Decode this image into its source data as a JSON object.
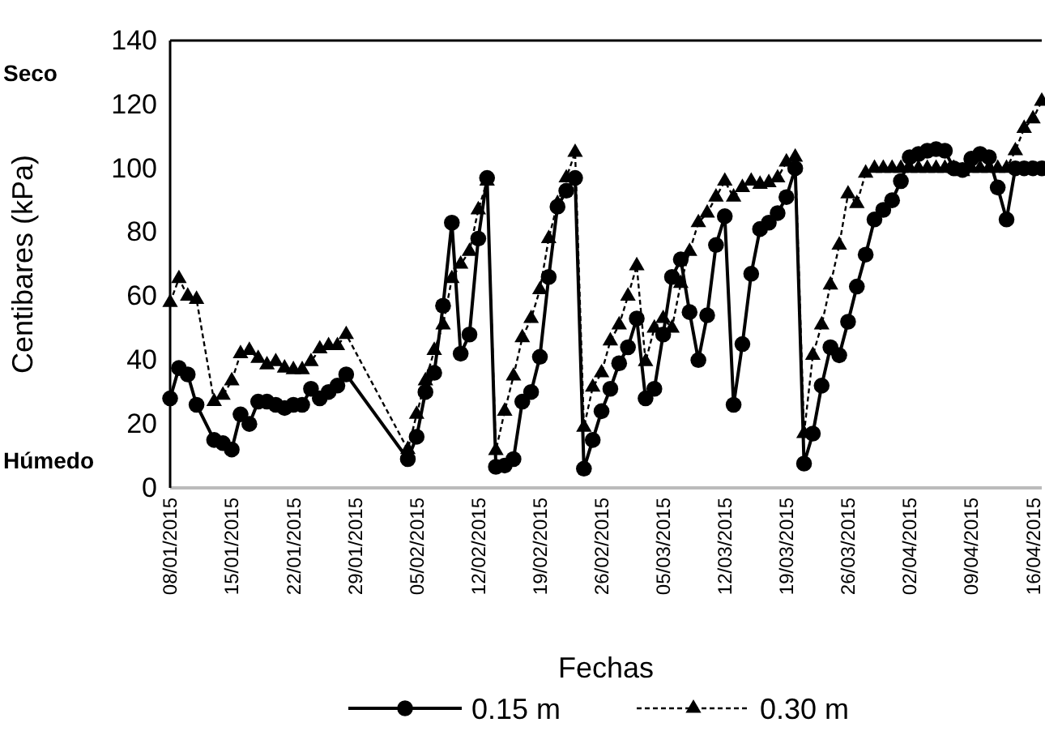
{
  "chart_data": {
    "type": "line",
    "xlabel": "Fechas",
    "ylabel": "Centibares (kPa)",
    "annotations": [
      "Seco",
      "Húmedo"
    ],
    "xlim": [
      "2015-01-08",
      "2015-04-17"
    ],
    "ylim": [
      0,
      140
    ],
    "yticks": [
      0,
      20,
      40,
      60,
      80,
      100,
      120,
      140
    ],
    "xticks": [
      {
        "value": "2015-01-08",
        "label": "08/01/2015"
      },
      {
        "value": "2015-01-15",
        "label": "15/01/2015"
      },
      {
        "value": "2015-01-22",
        "label": "22/01/2015"
      },
      {
        "value": "2015-01-29",
        "label": "29/01/2015"
      },
      {
        "value": "2015-02-05",
        "label": "05/02/2015"
      },
      {
        "value": "2015-02-12",
        "label": "12/02/2015"
      },
      {
        "value": "2015-02-19",
        "label": "19/02/2015"
      },
      {
        "value": "2015-02-26",
        "label": "26/02/2015"
      },
      {
        "value": "2015-03-05",
        "label": "05/03/2015"
      },
      {
        "value": "2015-03-12",
        "label": "12/03/2015"
      },
      {
        "value": "2015-03-19",
        "label": "19/03/2015"
      },
      {
        "value": "2015-03-26",
        "label": "26/03/2015"
      },
      {
        "value": "2015-04-02",
        "label": "02/04/2015"
      },
      {
        "value": "2015-04-09",
        "label": "09/04/2015"
      },
      {
        "value": "2015-04-16",
        "label": "16/04/2015"
      }
    ],
    "legend": "bottom",
    "grid": false,
    "series": [
      {
        "name": "0.15 m",
        "color": "#000000",
        "marker": "circle",
        "line_style": "solid",
        "x": [
          "2015-01-08",
          "2015-01-09",
          "2015-01-10",
          "2015-01-11",
          "2015-01-13",
          "2015-01-14",
          "2015-01-15",
          "2015-01-16",
          "2015-01-17",
          "2015-01-18",
          "2015-01-19",
          "2015-01-20",
          "2015-01-21",
          "2015-01-22",
          "2015-01-23",
          "2015-01-24",
          "2015-01-25",
          "2015-01-26",
          "2015-01-27",
          "2015-01-28",
          "2015-02-04",
          "2015-02-05",
          "2015-02-06",
          "2015-02-07",
          "2015-02-08",
          "2015-02-09",
          "2015-02-10",
          "2015-02-11",
          "2015-02-12",
          "2015-02-13",
          "2015-02-14",
          "2015-02-15",
          "2015-02-16",
          "2015-02-17",
          "2015-02-18",
          "2015-02-19",
          "2015-02-20",
          "2015-02-21",
          "2015-02-22",
          "2015-02-23",
          "2015-02-24",
          "2015-02-25",
          "2015-02-26",
          "2015-02-27",
          "2015-02-28",
          "2015-03-01",
          "2015-03-02",
          "2015-03-03",
          "2015-03-04",
          "2015-03-05",
          "2015-03-06",
          "2015-03-07",
          "2015-03-08",
          "2015-03-09",
          "2015-03-10",
          "2015-03-11",
          "2015-03-12",
          "2015-03-13",
          "2015-03-14",
          "2015-03-15",
          "2015-03-16",
          "2015-03-17",
          "2015-03-18",
          "2015-03-19",
          "2015-03-20",
          "2015-03-21",
          "2015-03-22",
          "2015-03-23",
          "2015-03-24",
          "2015-03-25",
          "2015-03-26",
          "2015-03-27",
          "2015-03-28",
          "2015-03-29",
          "2015-03-30",
          "2015-03-31",
          "2015-04-01",
          "2015-04-02",
          "2015-04-03",
          "2015-04-04",
          "2015-04-05",
          "2015-04-06",
          "2015-04-07",
          "2015-04-08",
          "2015-04-09",
          "2015-04-10",
          "2015-04-11",
          "2015-04-12",
          "2015-04-13",
          "2015-04-14",
          "2015-04-15",
          "2015-04-16",
          "2015-04-17"
        ],
        "values": [
          28,
          37.5,
          35.5,
          26,
          15,
          14,
          12,
          23,
          20,
          27,
          27,
          26,
          25,
          26,
          26,
          31,
          28,
          30,
          32,
          35.5,
          9,
          16,
          30,
          36,
          57,
          83,
          42,
          48,
          78,
          97,
          6.6,
          7,
          9,
          27,
          30,
          41,
          66,
          88,
          93,
          97,
          6,
          15,
          24,
          31,
          39,
          44,
          53,
          28,
          31,
          48,
          66,
          71.5,
          55,
          40,
          54,
          76,
          85,
          26,
          45,
          67,
          81,
          83,
          86,
          91,
          100,
          7.6,
          17,
          32,
          44,
          41.5,
          52,
          63,
          73,
          84,
          87,
          90,
          96,
          103.5,
          104.5,
          105.5,
          106,
          105.5,
          100,
          99.5,
          103,
          104.5,
          103.5,
          94,
          84,
          100,
          100,
          100,
          100
        ]
      },
      {
        "name": "0.30 m",
        "color": "#000000",
        "marker": "triangle",
        "line_style": "dashed",
        "x": [
          "2015-01-08",
          "2015-01-09",
          "2015-01-10",
          "2015-01-11",
          "2015-01-13",
          "2015-01-14",
          "2015-01-15",
          "2015-01-16",
          "2015-01-17",
          "2015-01-18",
          "2015-01-19",
          "2015-01-20",
          "2015-01-21",
          "2015-01-22",
          "2015-01-23",
          "2015-01-24",
          "2015-01-25",
          "2015-01-26",
          "2015-01-27",
          "2015-01-28",
          "2015-02-04",
          "2015-02-05",
          "2015-02-06",
          "2015-02-07",
          "2015-02-08",
          "2015-02-09",
          "2015-02-10",
          "2015-02-11",
          "2015-02-12",
          "2015-02-13",
          "2015-02-14",
          "2015-02-15",
          "2015-02-16",
          "2015-02-17",
          "2015-02-18",
          "2015-02-19",
          "2015-02-20",
          "2015-02-21",
          "2015-02-22",
          "2015-02-23",
          "2015-02-24",
          "2015-02-25",
          "2015-02-26",
          "2015-02-27",
          "2015-02-28",
          "2015-03-01",
          "2015-03-02",
          "2015-03-03",
          "2015-03-04",
          "2015-03-05",
          "2015-03-06",
          "2015-03-07",
          "2015-03-08",
          "2015-03-09",
          "2015-03-10",
          "2015-03-11",
          "2015-03-12",
          "2015-03-13",
          "2015-03-14",
          "2015-03-15",
          "2015-03-16",
          "2015-03-17",
          "2015-03-18",
          "2015-03-19",
          "2015-03-20",
          "2015-03-21",
          "2015-03-22",
          "2015-03-23",
          "2015-03-24",
          "2015-03-25",
          "2015-03-26",
          "2015-03-27",
          "2015-03-28",
          "2015-03-29",
          "2015-03-30",
          "2015-03-31",
          "2015-04-01",
          "2015-04-02",
          "2015-04-03",
          "2015-04-04",
          "2015-04-05",
          "2015-04-06",
          "2015-04-07",
          "2015-04-08",
          "2015-04-09",
          "2015-04-10",
          "2015-04-11",
          "2015-04-12",
          "2015-04-13",
          "2015-04-14",
          "2015-04-15",
          "2015-04-16",
          "2015-04-17"
        ],
        "values": [
          58,
          65.5,
          60,
          59,
          27,
          29,
          33.5,
          42,
          43,
          40.5,
          38.5,
          39.5,
          37.5,
          37,
          37,
          39.5,
          43.5,
          44.5,
          44.5,
          48,
          12,
          23,
          33.5,
          43,
          51,
          65.5,
          70,
          74,
          87,
          96,
          11.7,
          24,
          35,
          47,
          53,
          62,
          78,
          89,
          97,
          105,
          19,
          31.5,
          36,
          46,
          51,
          60,
          69.5,
          39.5,
          50,
          53,
          50,
          64,
          74,
          83,
          86,
          91,
          96,
          91,
          94,
          96,
          95,
          95.5,
          97,
          102,
          103.5,
          17,
          41.5,
          51,
          63.5,
          76,
          92,
          89,
          98.5,
          100,
          100,
          100,
          100,
          100,
          100,
          100,
          100,
          100,
          100,
          99,
          100,
          100,
          100,
          100,
          100,
          105.5,
          112.5,
          115.5,
          121
        ]
      }
    ]
  }
}
